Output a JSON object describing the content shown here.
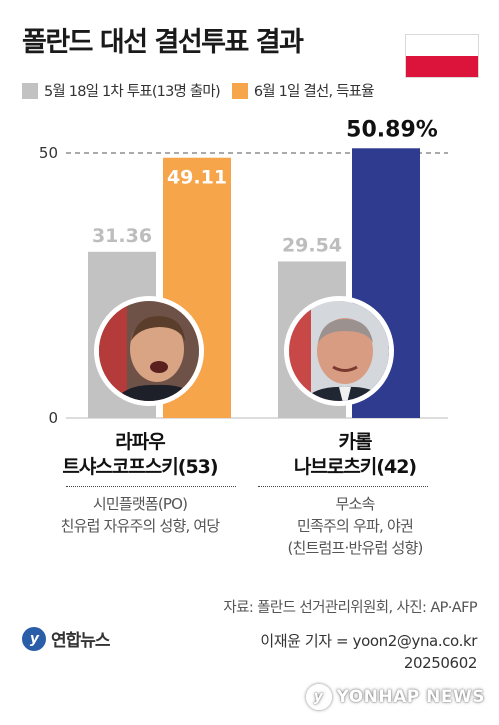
{
  "header": {
    "title": "폴란드 대선 결선투표 결과",
    "flag_colors": {
      "top": "#ffffff",
      "bottom": "#dc143c"
    }
  },
  "legend": {
    "first_round": "5월 18일 1차 투표(13명 출마)",
    "second_round": "6월 1일 결선, 득표율"
  },
  "colors": {
    "first_round": "#c2c2c2",
    "second_round_left": "#f7a54b",
    "second_round_right": "#2e3b8e"
  },
  "chart_data": {
    "type": "bar",
    "categories": [
      "라파우 트샤스코프스키",
      "카롤 나브로츠키"
    ],
    "series": [
      {
        "name": "5월 18일 1차 투표(13명 출마)",
        "values": [
          31.36,
          29.54
        ]
      },
      {
        "name": "6월 1일 결선, 득표율",
        "values": [
          49.11,
          50.89
        ]
      }
    ],
    "value_labels": {
      "first_round": [
        "31.36",
        "29.54"
      ],
      "second_round": [
        "49.11",
        "50.89%"
      ]
    },
    "ylim": [
      0,
      50
    ],
    "yticks": [
      "0",
      "50"
    ],
    "reference_line": 50,
    "legend_position": "top-left"
  },
  "candidates": [
    {
      "name_line1": "라파우",
      "name_line2": "트샤스코프스키(53)",
      "info_line1": "시민플랫폼(PO)",
      "info_line2": "친유럽 자유주의 성향, 여당",
      "info_line3": ""
    },
    {
      "name_line1": "카롤",
      "name_line2": "나브로츠키(42)",
      "info_line1": "무소속",
      "info_line2": "민족주의 우파, 야권",
      "info_line3": "(친트럼프·반유럽 성향)"
    }
  ],
  "footer": {
    "source": "자료: 폴란드 선거관리위원회, 사진: AP·AFP",
    "logo_text": "연합뉴스",
    "credit": "이재윤 기자 = yoon2@yna.co.kr",
    "date": "20250602",
    "watermark": "YONHAP NEWS"
  }
}
